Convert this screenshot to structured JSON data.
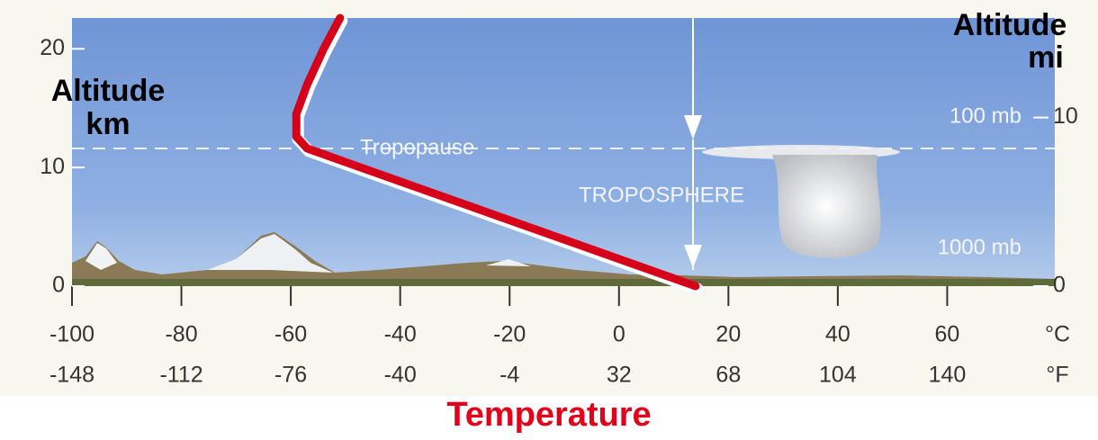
{
  "chart_data": {
    "type": "line",
    "xlabel": "Temperature",
    "ylabel": "Altitude",
    "ylabel_unit": "km",
    "y2label": "Altitude",
    "y2label_unit": "mi",
    "x_unit": "°C",
    "x2_unit": "°F",
    "xlim": [
      -100,
      80
    ],
    "xticks": [
      -100,
      -80,
      -60,
      -40,
      -20,
      0,
      20,
      40,
      60
    ],
    "x2lim": [
      -148,
      176
    ],
    "x2ticks": [
      -148,
      -112,
      -76,
      -40,
      -4,
      32,
      68,
      104,
      140
    ],
    "ylim": [
      0,
      22.6
    ],
    "yticks": [
      0,
      10,
      20
    ],
    "y2lim": [
      0,
      15.9
    ],
    "y2ticks": [
      0,
      10
    ],
    "series": [
      {
        "color": "#d7001a",
        "x": [
          14,
          -57,
          -59,
          -59,
          -57,
          -54,
          -51
        ],
        "y": [
          0,
          11.6,
          12.6,
          14.5,
          17,
          20,
          22.6
        ]
      }
    ],
    "annotations": [
      "Tropopause",
      "TROPOSPHERE",
      "100 mb",
      "1000 mb"
    ]
  }
}
